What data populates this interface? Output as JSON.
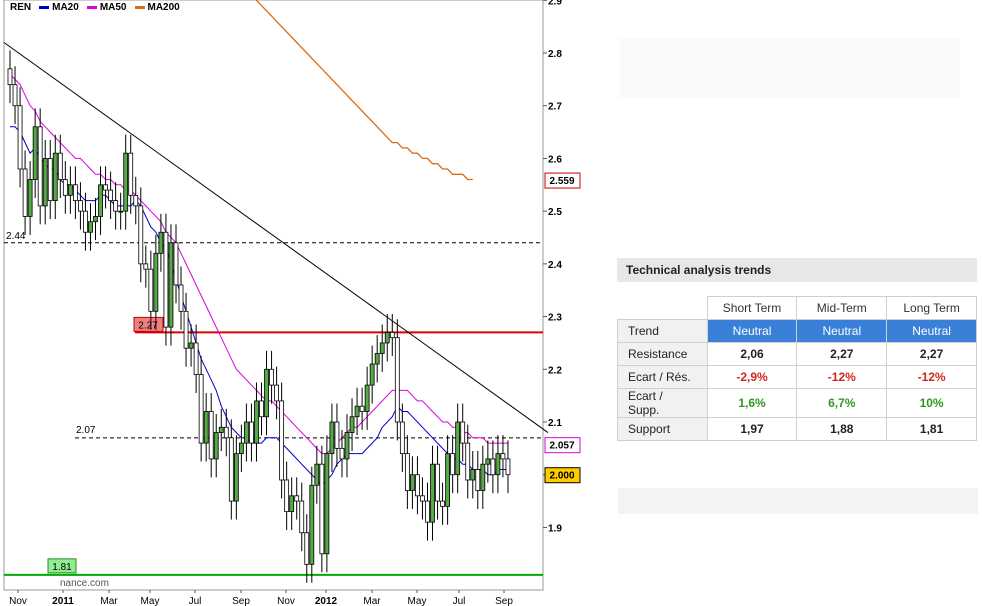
{
  "legend": {
    "ticker": "REN",
    "items": [
      {
        "label": "MA20",
        "color": "#0000cc"
      },
      {
        "label": "MA50",
        "color": "#dd00dd"
      },
      {
        "label": "MA200",
        "color": "#e06a10"
      }
    ]
  },
  "chart_data": {
    "type": "candlestick",
    "ticker": "REN",
    "x_tick_labels": [
      "Nov",
      "2011",
      "Mar",
      "May",
      "Jul",
      "Sep",
      "Nov",
      "2012",
      "Mar",
      "May",
      "Jul",
      "Sep"
    ],
    "y_tick_labels": [
      "2.9",
      "2.8",
      "2.7",
      "2.6",
      "2.5",
      "2.4",
      "2.3",
      "2.2",
      "2.1",
      "2",
      "1.9"
    ],
    "ylim": [
      1.8,
      2.95
    ],
    "horizontal_levels": [
      {
        "value": 2.44,
        "label": "2.44",
        "style": "dashed",
        "color": "#000000"
      },
      {
        "value": 2.27,
        "label": "2.27",
        "style": "solid",
        "color": "#dd0000"
      },
      {
        "value": 2.07,
        "label": "2.07",
        "style": "dashed",
        "color": "#000000"
      },
      {
        "value": 1.81,
        "label": "1.81",
        "style": "solid",
        "color": "#00aa00"
      }
    ],
    "price_boxes": [
      {
        "value": 2.559,
        "label": "2.559",
        "series": "MA200"
      },
      {
        "value": 2.057,
        "label": "2.057",
        "series": "MA50"
      },
      {
        "value": 2.0,
        "label": "2.000",
        "series": "last"
      }
    ],
    "watermark": "nance.com",
    "trendline": {
      "from": {
        "x_week": 0,
        "y": 2.82
      },
      "to": {
        "x_week": 99,
        "y": 2.08
      }
    },
    "weekly_closes": [
      2.74,
      2.7,
      2.58,
      2.49,
      2.56,
      2.66,
      2.51,
      2.6,
      2.52,
      2.61,
      2.56,
      2.53,
      2.55,
      2.52,
      2.5,
      2.46,
      2.48,
      2.49,
      2.55,
      2.54,
      2.52,
      2.5,
      2.5,
      2.61,
      2.53,
      2.51,
      2.4,
      2.39,
      2.31,
      2.42,
      2.46,
      2.28,
      2.44,
      2.36,
      2.31,
      2.24,
      2.25,
      2.19,
      2.06,
      2.12,
      2.03,
      2.08,
      2.09,
      2.07,
      1.95,
      2.04,
      2.06,
      2.1,
      2.06,
      2.14,
      2.11,
      2.2,
      2.17,
      2.14,
      1.99,
      1.93,
      1.96,
      1.95,
      1.89,
      1.83,
      1.98,
      2.02,
      1.85,
      2.04,
      2.1,
      2.05,
      2.03,
      2.08,
      2.11,
      2.13,
      2.12,
      2.17,
      2.21,
      2.23,
      2.25,
      2.27,
      2.26,
      2.1,
      2.04,
      1.97,
      2.0,
      1.96,
      1.95,
      1.91,
      2.02,
      1.95,
      1.94,
      2.04,
      2.0,
      2.1,
      2.06,
      1.99,
      2.01,
      1.97,
      2.02,
      2.03,
      2.0,
      2.04,
      2.03,
      2.0
    ],
    "ma20": [
      2.66,
      2.66,
      2.65,
      2.63,
      2.61,
      2.62,
      2.6,
      2.59,
      2.58,
      2.58,
      2.56,
      2.55,
      2.55,
      2.54,
      2.53,
      2.52,
      2.52,
      2.52,
      2.53,
      2.53,
      2.52,
      2.51,
      2.51,
      2.51,
      2.51,
      2.52,
      2.51,
      2.49,
      2.47,
      2.46,
      2.44,
      2.43,
      2.4,
      2.37,
      2.34,
      2.31,
      2.28,
      2.25,
      2.22,
      2.2,
      2.18,
      2.16,
      2.13,
      2.11,
      2.09,
      2.08,
      2.07,
      2.07,
      2.06,
      2.06,
      2.06,
      2.07,
      2.07,
      2.07,
      2.06,
      2.05,
      2.04,
      2.03,
      2.02,
      2.01,
      2.0,
      1.99,
      1.98,
      1.99,
      2.0,
      2.02,
      2.03,
      2.04,
      2.04,
      2.04,
      2.04,
      2.05,
      2.06,
      2.07,
      2.09,
      2.1,
      2.11,
      2.13,
      2.12,
      2.12,
      2.11,
      2.1,
      2.09,
      2.08,
      2.07,
      2.06,
      2.05,
      2.04,
      2.03,
      2.03,
      2.02,
      2.02,
      2.01,
      2.01,
      2.01,
      2.0,
      2.0,
      2.01,
      2.01,
      2.01
    ],
    "ma50": [
      2.76,
      2.75,
      2.74,
      2.72,
      2.7,
      2.69,
      2.67,
      2.66,
      2.65,
      2.64,
      2.63,
      2.62,
      2.61,
      2.6,
      2.6,
      2.59,
      2.58,
      2.57,
      2.57,
      2.56,
      2.56,
      2.55,
      2.55,
      2.54,
      2.54,
      2.53,
      2.52,
      2.51,
      2.5,
      2.49,
      2.48,
      2.46,
      2.45,
      2.44,
      2.42,
      2.4,
      2.38,
      2.36,
      2.34,
      2.32,
      2.3,
      2.28,
      2.26,
      2.24,
      2.22,
      2.2,
      2.19,
      2.18,
      2.17,
      2.16,
      2.15,
      2.14,
      2.14,
      2.13,
      2.12,
      2.11,
      2.1,
      2.09,
      2.08,
      2.07,
      2.06,
      2.05,
      2.04,
      2.04,
      2.05,
      2.06,
      2.07,
      2.08,
      2.09,
      2.09,
      2.1,
      2.11,
      2.12,
      2.13,
      2.14,
      2.15,
      2.16,
      2.16,
      2.16,
      2.16,
      2.15,
      2.14,
      2.14,
      2.13,
      2.12,
      2.11,
      2.1,
      2.1,
      2.09,
      2.09,
      2.08,
      2.08,
      2.07,
      2.07,
      2.07,
      2.06,
      2.06,
      2.06,
      2.06,
      2.06
    ],
    "ma200": [
      3.06,
      3.05,
      3.04,
      3.03,
      3.02,
      3.01,
      3.0,
      2.99,
      2.98,
      2.97,
      2.96,
      2.95,
      2.94,
      2.93,
      2.92,
      2.91,
      2.9,
      2.89,
      2.88,
      2.87,
      2.86,
      2.85,
      2.84,
      2.83,
      2.82,
      2.81,
      2.8,
      2.79,
      2.78,
      2.77,
      2.76,
      2.75,
      2.74,
      2.73,
      2.72,
      2.71,
      2.7,
      2.69,
      2.68,
      2.67,
      2.66,
      2.65,
      2.64,
      2.63,
      2.63,
      2.62,
      2.62,
      2.61,
      2.61,
      2.6,
      2.6,
      2.59,
      2.59,
      2.58,
      2.58,
      2.57,
      2.57,
      2.57,
      2.56,
      2.56
    ]
  },
  "technical_analysis": {
    "title": "Technical analysis trends",
    "columns": [
      "Short Term",
      "Mid-Term",
      "Long Term"
    ],
    "rows": [
      {
        "label": "Trend",
        "values": [
          "Neutral",
          "Neutral",
          "Neutral"
        ],
        "style": "trend"
      },
      {
        "label": "Resistance",
        "values": [
          "2,06",
          "2,27",
          "2,27"
        ],
        "style": "plain"
      },
      {
        "label": "Ecart / Rés.",
        "values": [
          "-2,9%",
          "-12%",
          "-12%"
        ],
        "style": "neg"
      },
      {
        "label": "Ecart / Supp.",
        "values": [
          "1,6%",
          "6,7%",
          "10%"
        ],
        "style": "pos"
      },
      {
        "label": "Support",
        "values": [
          "1,97",
          "1,88",
          "1,81"
        ],
        "style": "plain"
      }
    ]
  }
}
